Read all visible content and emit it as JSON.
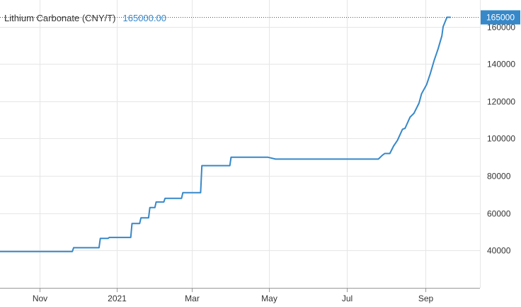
{
  "legend": {
    "series_label": "Lithium Carbonate (CNY/T)",
    "series_value": "165000.00"
  },
  "colors": {
    "line": "#3688c9",
    "grid": "#e6e6e6",
    "badge": "#3688c9",
    "badge_text": "#ffffff",
    "text": "#333333"
  },
  "chart_data": {
    "type": "line",
    "title": "",
    "xlabel": "",
    "ylabel": "",
    "ylim": [
      20000,
      172000
    ],
    "xlim": [
      "2020-10-01",
      "2021-10-14"
    ],
    "y_ticks": [
      40000,
      60000,
      80000,
      100000,
      120000,
      140000,
      160000
    ],
    "y_tick_labels": [
      "40000",
      "60000",
      "80000",
      "100000",
      "120000",
      "140000",
      "160000"
    ],
    "x_ticks": [
      {
        "date": "2020-11-01",
        "label": "Nov"
      },
      {
        "date": "2021-01-01",
        "label": "2021"
      },
      {
        "date": "2021-03-01",
        "label": "Mar"
      },
      {
        "date": "2021-05-01",
        "label": "May"
      },
      {
        "date": "2021-07-01",
        "label": "Jul"
      },
      {
        "date": "2021-09-01",
        "label": "Sep"
      }
    ],
    "last_value_label": "165000",
    "grid": true,
    "series": [
      {
        "name": "Lithium Carbonate (CNY/T)",
        "points": [
          [
            "2020-10-01",
            39500
          ],
          [
            "2020-11-27",
            39500
          ],
          [
            "2020-11-28",
            41500
          ],
          [
            "2020-12-18",
            41500
          ],
          [
            "2020-12-19",
            46500
          ],
          [
            "2020-12-25",
            46500
          ],
          [
            "2020-12-26",
            47000
          ],
          [
            "2021-01-12",
            47000
          ],
          [
            "2021-01-13",
            54500
          ],
          [
            "2021-01-19",
            54500
          ],
          [
            "2021-01-20",
            57500
          ],
          [
            "2021-01-26",
            57500
          ],
          [
            "2021-01-27",
            63000
          ],
          [
            "2021-01-31",
            63000
          ],
          [
            "2021-02-01",
            66000
          ],
          [
            "2021-02-07",
            66000
          ],
          [
            "2021-02-08",
            68000
          ],
          [
            "2021-02-21",
            68000
          ],
          [
            "2021-02-22",
            71000
          ],
          [
            "2021-03-08",
            71000
          ],
          [
            "2021-03-09",
            85500
          ],
          [
            "2021-03-31",
            85500
          ],
          [
            "2021-04-01",
            90000
          ],
          [
            "2021-04-30",
            90000
          ],
          [
            "2021-05-06",
            89000
          ],
          [
            "2021-07-26",
            89000
          ],
          [
            "2021-07-29",
            91000
          ],
          [
            "2021-07-31",
            92000
          ],
          [
            "2021-08-04",
            92000
          ],
          [
            "2021-08-07",
            96000
          ],
          [
            "2021-08-10",
            99000
          ],
          [
            "2021-08-14",
            105000
          ],
          [
            "2021-08-16",
            105500
          ],
          [
            "2021-08-20",
            111500
          ],
          [
            "2021-08-23",
            113500
          ],
          [
            "2021-08-27",
            119000
          ],
          [
            "2021-08-29",
            124000
          ],
          [
            "2021-09-02",
            129000
          ],
          [
            "2021-09-05",
            135000
          ],
          [
            "2021-09-08",
            142000
          ],
          [
            "2021-09-11",
            148000
          ],
          [
            "2021-09-14",
            155000
          ],
          [
            "2021-09-15",
            160000
          ],
          [
            "2021-09-18",
            165000
          ],
          [
            "2021-09-21",
            165000
          ]
        ]
      }
    ]
  }
}
